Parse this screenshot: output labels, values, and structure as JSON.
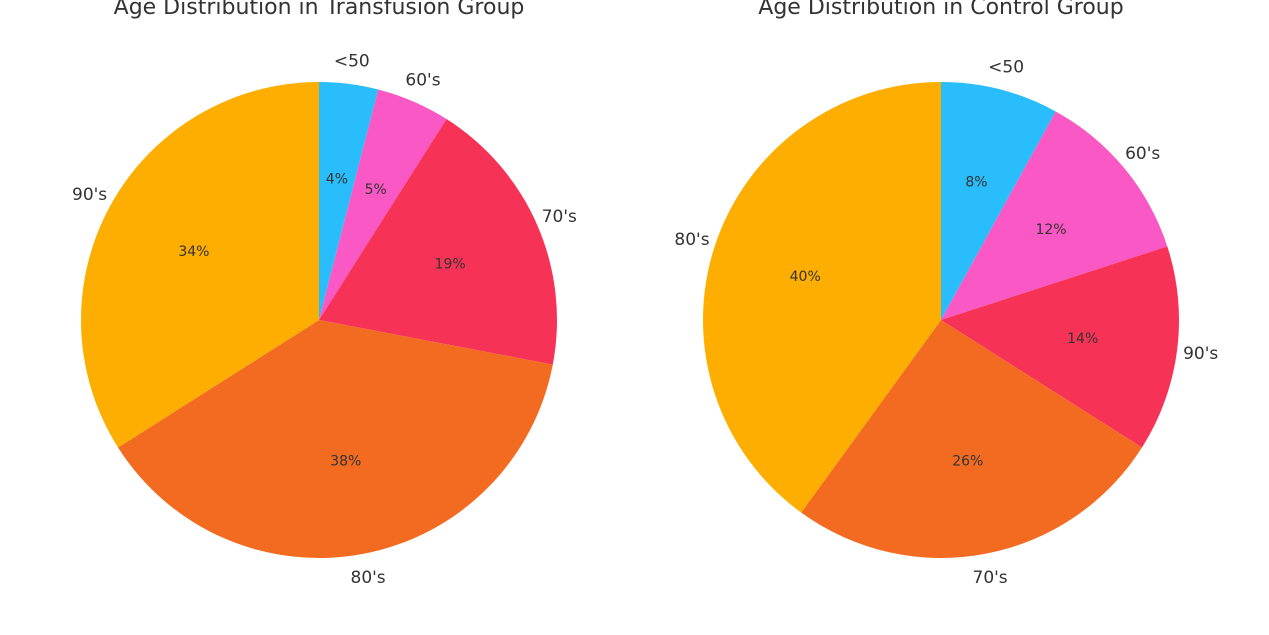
{
  "chart_data": [
    {
      "type": "pie",
      "title": "Age Distribution in Transfusion Group",
      "categories": [
        "<50",
        "60's",
        "70's",
        "80's",
        "90's"
      ],
      "values": [
        4,
        5,
        19,
        38,
        34
      ],
      "value_labels": [
        "4%",
        "5%",
        "19%",
        "38%",
        "34%"
      ],
      "colors": [
        "#29bdfb",
        "#f958c5",
        "#f73257",
        "#f36b21",
        "#feae00"
      ],
      "start": "top",
      "direction": "clockwise"
    },
    {
      "type": "pie",
      "title": "Age Distribution in Control Group",
      "categories": [
        "<50",
        "60's",
        "90's",
        "70's",
        "80's"
      ],
      "values": [
        8,
        12,
        14,
        26,
        40
      ],
      "value_labels": [
        "8%",
        "12%",
        "14%",
        "26%",
        "40%"
      ],
      "colors": [
        "#29bdfb",
        "#f958c5",
        "#f73257",
        "#f36b21",
        "#feae00"
      ],
      "start": "top",
      "direction": "clockwise"
    }
  ]
}
